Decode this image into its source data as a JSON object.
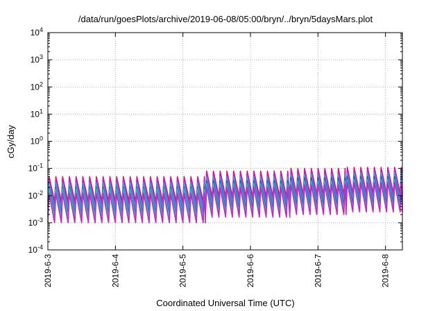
{
  "chart_data": {
    "type": "line",
    "title": "/data/run/goesPlots/archive/2019-06-08/05:00/bryn/../bryn/5daysMars.plot",
    "xlabel": "Coordinated Universal Time (UTC)",
    "ylabel": "cGy/day",
    "yscale": "log",
    "ylim": [
      0.0001,
      10000
    ],
    "y_ticks": [
      {
        "value": 0.0001,
        "base": "10",
        "exp": "-4"
      },
      {
        "value": 0.001,
        "base": "10",
        "exp": "-3"
      },
      {
        "value": 0.01,
        "base": "10",
        "exp": "-2"
      },
      {
        "value": 0.1,
        "base": "10",
        "exp": "-1"
      },
      {
        "value": 1,
        "base": "10",
        "exp": "0"
      },
      {
        "value": 10,
        "base": "10",
        "exp": "1"
      },
      {
        "value": 100,
        "base": "10",
        "exp": "2"
      },
      {
        "value": 1000,
        "base": "10",
        "exp": "3"
      },
      {
        "value": 10000,
        "base": "10",
        "exp": "4"
      }
    ],
    "xlim": [
      "2019-06-03",
      "2019-06-08T06:00"
    ],
    "x_ticks": [
      {
        "value": "2019-06-03",
        "label": "2019-6-3"
      },
      {
        "value": "2019-06-04",
        "label": "2019-6-4"
      },
      {
        "value": "2019-06-05",
        "label": "2019-6-5"
      },
      {
        "value": "2019-06-06",
        "label": "2019-6-6"
      },
      {
        "value": "2019-06-07",
        "label": "2019-6-7"
      },
      {
        "value": "2019-06-08",
        "label": "2019-6-8"
      }
    ],
    "grid": true,
    "sawtooth_period_hours": 2.4,
    "series_colors": [
      "#cc2255",
      "#ee00ee",
      "#22aacc",
      "#2255cc",
      "#22bbbb",
      "#cc22cc"
    ],
    "segments": [
      {
        "start": "2019-06-03T00:00",
        "end": "2019-06-05T08:00",
        "peaks": [
          0.05,
          0.04,
          0.03,
          0.02,
          0.018,
          0.012
        ],
        "troughs": [
          0.006,
          0.004,
          0.003,
          0.002,
          0.0016,
          0.001
        ]
      },
      {
        "start": "2019-06-05T08:00",
        "end": "2019-06-06T14:00",
        "peaks": [
          0.08,
          0.065,
          0.05,
          0.035,
          0.028,
          0.02
        ],
        "troughs": [
          0.009,
          0.006,
          0.0045,
          0.003,
          0.0024,
          0.0016
        ]
      },
      {
        "start": "2019-06-06T14:00",
        "end": "2019-06-07T10:00",
        "peaks": [
          0.1,
          0.08,
          0.06,
          0.045,
          0.035,
          0.025
        ],
        "troughs": [
          0.011,
          0.008,
          0.006,
          0.004,
          0.003,
          0.002
        ]
      },
      {
        "start": "2019-06-07T10:00",
        "end": "2019-06-08T06:00",
        "peaks": [
          0.11,
          0.09,
          0.07,
          0.05,
          0.04,
          0.03
        ],
        "troughs": [
          0.012,
          0.009,
          0.0065,
          0.0045,
          0.0035,
          0.0025
        ]
      }
    ]
  }
}
